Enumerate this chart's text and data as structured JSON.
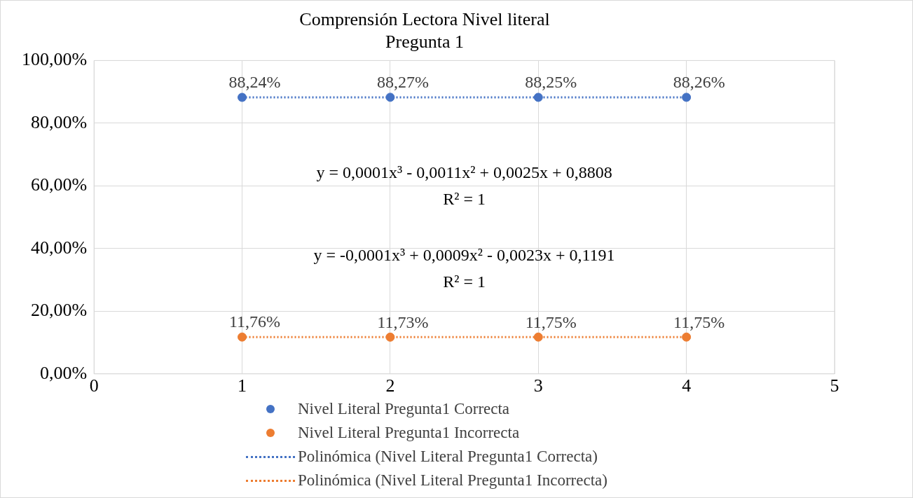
{
  "chart_data": {
    "type": "scatter",
    "title": "Comprensión Lectora Nivel literal",
    "subtitle": "Pregunta 1",
    "x": [
      1,
      2,
      3,
      4
    ],
    "series": [
      {
        "name": "Nivel Literal Pregunta1 Correcta",
        "marker": "circle",
        "color": "#4472c4",
        "values": [
          88.24,
          88.27,
          88.25,
          88.26
        ],
        "value_labels": [
          "88,24%",
          "88,27%",
          "88,25%",
          "88,26%"
        ]
      },
      {
        "name": "Nivel Literal Pregunta1 Incorrecta",
        "marker": "circle",
        "color": "#ed7d31",
        "values": [
          11.76,
          11.73,
          11.75,
          11.75
        ],
        "value_labels": [
          "11,76%",
          "11,73%",
          "11,75%",
          "11,75%"
        ]
      },
      {
        "name": "Polinómica (Nivel Literal Pregunta1 Correcta)",
        "type": "line",
        "marker": "none",
        "line_style": "dotted",
        "color": "#4472c4",
        "values": [
          88.24,
          88.27,
          88.25,
          88.26
        ]
      },
      {
        "name": "Polinómica (Nivel Literal Pregunta1 Incorrecta)",
        "type": "line",
        "marker": "none",
        "line_style": "dotted",
        "color": "#ed7d31",
        "values": [
          11.76,
          11.73,
          11.75,
          11.75
        ]
      }
    ],
    "annotations": [
      "y = 0,0001x³ - 0,0011x² + 0,0025x + 0,8808",
      "R² = 1",
      "y = -0,0001x³ + 0,0009x² - 0,0023x + 0,1191",
      "R² = 1"
    ],
    "xlim": [
      0,
      5
    ],
    "xticks": [
      0,
      1,
      2,
      3,
      4,
      5
    ],
    "ylim": [
      0,
      100
    ],
    "yticks": [
      {
        "value": 0,
        "label": "0,00%"
      },
      {
        "value": 20,
        "label": "20,00%"
      },
      {
        "value": 40,
        "label": "40,00%"
      },
      {
        "value": 60,
        "label": "60,00%"
      },
      {
        "value": 80,
        "label": "80,00%"
      },
      {
        "value": 100,
        "label": "100,00%"
      }
    ],
    "grid": true,
    "legend": "bottom"
  }
}
